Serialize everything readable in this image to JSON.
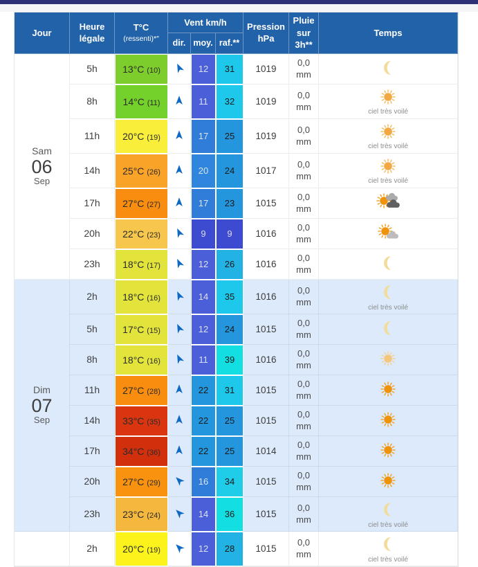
{
  "colors": {
    "topbar": "#2D3278",
    "header_bg": "#2262A9",
    "arrow": "#0E68C4",
    "moon": "#F3DB9A",
    "day_white_bg": "#FFFFFF",
    "day_blue_bg": "#DCEAFB"
  },
  "header": {
    "jour": "Jour",
    "heure": "Heure légale",
    "temp_main": "T°C",
    "temp_sub": "(ressenti)*″",
    "vent": "Vent km/h",
    "dir": "dir.",
    "moy": "moy.",
    "raf": "raf.**",
    "pression": "Pression hPa",
    "pluie": "Pluie sur 3h**",
    "temps": "Temps"
  },
  "days": [
    {
      "label": "Sam",
      "num": "06",
      "month": "Sep",
      "rows": 7,
      "bg": "#FFFFFF"
    },
    {
      "label": "Dim",
      "num": "07",
      "month": "Sep",
      "rows": 8,
      "bg": "#DCEAFB"
    },
    {
      "label": "",
      "num": "",
      "month": "",
      "rows": 1,
      "bg": "#FFFFFF"
    }
  ],
  "rows": [
    {
      "heure": "5h",
      "temp": "13°C",
      "feel": "(10)",
      "temp_bg": "#7DCE2C",
      "dir_deg": -25,
      "wind_avg": {
        "value": "12",
        "bg": "#4A5FD8",
        "fg": "#DDE1F6"
      },
      "wind_gust": {
        "value": "31",
        "bg": "#1DC8EA",
        "fg": "#1A1A1A"
      },
      "pression": "1019",
      "pluie": "0,0 mm",
      "sky_icon": "moon",
      "sky_label": ""
    },
    {
      "heure": "8h",
      "temp": "14°C",
      "feel": "(11)",
      "temp_bg": "#74D02A",
      "dir_deg": 0,
      "wind_avg": {
        "value": "11",
        "bg": "#4A5FD8",
        "fg": "#DDE1F6"
      },
      "wind_gust": {
        "value": "32",
        "bg": "#1DC8EA",
        "fg": "#1A1A1A"
      },
      "pression": "1019",
      "pluie": "0,0 mm",
      "sky_icon": "sun-veiled",
      "sky_label": "ciel très voilé"
    },
    {
      "heure": "11h",
      "temp": "20°C",
      "feel": "(19)",
      "temp_bg": "#F9EF3B",
      "dir_deg": 0,
      "wind_avg": {
        "value": "17",
        "bg": "#2F7CD9",
        "fg": "#DCE6F5"
      },
      "wind_gust": {
        "value": "25",
        "bg": "#2496DD",
        "fg": "#1A1A1A"
      },
      "pression": "1019",
      "pluie": "0,0 mm",
      "sky_icon": "sun-veiled",
      "sky_label": "ciel très voilé"
    },
    {
      "heure": "14h",
      "temp": "25°C",
      "feel": "(26)",
      "temp_bg": "#F9A328",
      "dir_deg": 0,
      "wind_avg": {
        "value": "20",
        "bg": "#2F86DC",
        "fg": "#D9E4F2"
      },
      "wind_gust": {
        "value": "24",
        "bg": "#2496DD",
        "fg": "#1A1A1A"
      },
      "pression": "1017",
      "pluie": "0,0 mm",
      "sky_icon": "sun-veiled",
      "sky_label": "ciel très voilé"
    },
    {
      "heure": "17h",
      "temp": "27°C",
      "feel": "(27)",
      "temp_bg": "#F88D0F",
      "dir_deg": 0,
      "wind_avg": {
        "value": "17",
        "bg": "#2F7CD9",
        "fg": "#DCE6F5"
      },
      "wind_gust": {
        "value": "23",
        "bg": "#2496DD",
        "fg": "#1A1A1A"
      },
      "pression": "1015",
      "pluie": "0,0 mm",
      "sky_icon": "sun-cloud-dark",
      "sky_label": ""
    },
    {
      "heure": "20h",
      "temp": "22°C",
      "feel": "(23)",
      "temp_bg": "#F6C74C",
      "dir_deg": -25,
      "wind_avg": {
        "value": "9",
        "bg": "#3D4BD1",
        "fg": "#D8DCF2"
      },
      "wind_gust": {
        "value": "9",
        "bg": "#3D4BD1",
        "fg": "#D8DCF2"
      },
      "pression": "1016",
      "pluie": "0,0 mm",
      "sky_icon": "sun-cloud",
      "sky_label": ""
    },
    {
      "heure": "23h",
      "temp": "18°C",
      "feel": "(17)",
      "temp_bg": "#E2E43C",
      "dir_deg": -25,
      "wind_avg": {
        "value": "12",
        "bg": "#4A5FD8",
        "fg": "#DDE1F6"
      },
      "wind_gust": {
        "value": "26",
        "bg": "#22B2E3",
        "fg": "#1A1A1A"
      },
      "pression": "1016",
      "pluie": "0,0 mm",
      "sky_icon": "moon",
      "sky_label": ""
    },
    {
      "heure": "2h",
      "temp": "18°C",
      "feel": "(16)",
      "temp_bg": "#E2E43C",
      "dir_deg": -25,
      "wind_avg": {
        "value": "14",
        "bg": "#4A5FD8",
        "fg": "#DDE1F6"
      },
      "wind_gust": {
        "value": "35",
        "bg": "#1DC8EA",
        "fg": "#1A1A1A"
      },
      "pression": "1016",
      "pluie": "0,0 mm",
      "sky_icon": "moon",
      "sky_label": "ciel très voilé"
    },
    {
      "heure": "5h",
      "temp": "17°C",
      "feel": "(15)",
      "temp_bg": "#E2E43C",
      "dir_deg": -25,
      "wind_avg": {
        "value": "12",
        "bg": "#4A5FD8",
        "fg": "#DDE1F6"
      },
      "wind_gust": {
        "value": "24",
        "bg": "#2496DD",
        "fg": "#1A1A1A"
      },
      "pression": "1015",
      "pluie": "0,0 mm",
      "sky_icon": "moon",
      "sky_label": ""
    },
    {
      "heure": "8h",
      "temp": "18°C",
      "feel": "(16)",
      "temp_bg": "#E2E43C",
      "dir_deg": -25,
      "wind_avg": {
        "value": "11",
        "bg": "#4A5FD8",
        "fg": "#DDE1F6"
      },
      "wind_gust": {
        "value": "39",
        "bg": "#13DEE2",
        "fg": "#1A1A1A"
      },
      "pression": "1016",
      "pluie": "0,0 mm",
      "sky_icon": "sun-pale",
      "sky_label": ""
    },
    {
      "heure": "11h",
      "temp": "27°C",
      "feel": "(28)",
      "temp_bg": "#F88D0F",
      "dir_deg": 0,
      "wind_avg": {
        "value": "22",
        "bg": "#2496DD",
        "fg": "#1A1A1A"
      },
      "wind_gust": {
        "value": "31",
        "bg": "#1DC8EA",
        "fg": "#1A1A1A"
      },
      "pression": "1015",
      "pluie": "0,0 mm",
      "sky_icon": "sun",
      "sky_label": ""
    },
    {
      "heure": "14h",
      "temp": "33°C",
      "feel": "(35)",
      "temp_bg": "#D93510",
      "dir_deg": 0,
      "wind_avg": {
        "value": "22",
        "bg": "#2496DD",
        "fg": "#1A1A1A"
      },
      "wind_gust": {
        "value": "25",
        "bg": "#2496DD",
        "fg": "#1A1A1A"
      },
      "pression": "1015",
      "pluie": "0,0 mm",
      "sky_icon": "sun",
      "sky_label": ""
    },
    {
      "heure": "17h",
      "temp": "34°C",
      "feel": "(36)",
      "temp_bg": "#D22F0D",
      "dir_deg": 0,
      "wind_avg": {
        "value": "22",
        "bg": "#2496DD",
        "fg": "#1A1A1A"
      },
      "wind_gust": {
        "value": "25",
        "bg": "#2496DD",
        "fg": "#1A1A1A"
      },
      "pression": "1014",
      "pluie": "0,0 mm",
      "sky_icon": "sun",
      "sky_label": ""
    },
    {
      "heure": "20h",
      "temp": "27°C",
      "feel": "(29)",
      "temp_bg": "#F8920F",
      "dir_deg": -45,
      "wind_avg": {
        "value": "16",
        "bg": "#2F7CD9",
        "fg": "#DCE6F5"
      },
      "wind_gust": {
        "value": "34",
        "bg": "#1FCDE9",
        "fg": "#1A1A1A"
      },
      "pression": "1015",
      "pluie": "0,0 mm",
      "sky_icon": "sun",
      "sky_label": ""
    },
    {
      "heure": "23h",
      "temp": "23°C",
      "feel": "(24)",
      "temp_bg": "#F4B83E",
      "dir_deg": -45,
      "wind_avg": {
        "value": "14",
        "bg": "#4A5FD8",
        "fg": "#DDE1F6"
      },
      "wind_gust": {
        "value": "36",
        "bg": "#13DEE2",
        "fg": "#1A1A1A"
      },
      "pression": "1015",
      "pluie": "0,0 mm",
      "sky_icon": "moon",
      "sky_label": "ciel très voilé"
    },
    {
      "heure": "2h",
      "temp": "20°C",
      "feel": "(19)",
      "temp_bg": "#FCF21C",
      "dir_deg": -45,
      "wind_avg": {
        "value": "12",
        "bg": "#4A5FD8",
        "fg": "#DDE1F6"
      },
      "wind_gust": {
        "value": "28",
        "bg": "#22B2E3",
        "fg": "#1A1A1A"
      },
      "pression": "1015",
      "pluie": "0,0 mm",
      "sky_icon": "moon",
      "sky_label": "ciel très voilé"
    }
  ]
}
